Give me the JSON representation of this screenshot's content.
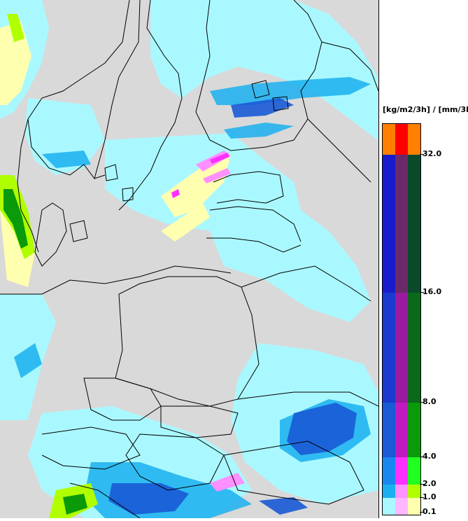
{
  "legend": {
    "unit_label": "[kg/m2/3h] / [mm/3h]",
    "ticks": [
      "32.0",
      "16.0",
      "8.0",
      "4.0",
      "2.0",
      "1.0",
      "0.1"
    ],
    "bands": [
      {
        "from": 32.0,
        "to": null,
        "colors": [
          "#ff7f00",
          "#ff0000",
          "#ff7f00"
        ]
      },
      {
        "from": 16.0,
        "to": 32.0,
        "colors": [
          "#1a1acd",
          "#6a2a6a",
          "#0a4a2a"
        ]
      },
      {
        "from": 8.0,
        "to": 16.0,
        "colors": [
          "#1a3acd",
          "#9a1aa0",
          "#0a6a1a"
        ]
      },
      {
        "from": 4.0,
        "to": 8.0,
        "colors": [
          "#1a5ad6",
          "#c01ac0",
          "#0a9a0a"
        ]
      },
      {
        "from": 2.0,
        "to": 4.0,
        "colors": [
          "#1a86f0",
          "#ff30ff",
          "#20ff20"
        ]
      },
      {
        "from": 1.0,
        "to": 2.0,
        "colors": [
          "#1ab0f0",
          "#ff90ff",
          "#b0ff00"
        ]
      },
      {
        "from": 0.1,
        "to": 1.0,
        "colors": [
          "#aaf8ff",
          "#ffb8ff",
          "#ffffb0"
        ]
      }
    ]
  },
  "map": {
    "background_color": "#d9d9d9",
    "border_color": "#000000",
    "precip_colors": {
      "light_rain": "#aaf8ff",
      "moderate_rain": "#1ab0f0",
      "heavy_rain": "#1a5ad6",
      "light_snow": "#ffffb0",
      "moderate_snow": "#ff90ff",
      "heavy_snow": "#ff30ff",
      "light_mixed": "#b0ff00",
      "heavy_mixed": "#0a9a0a"
    }
  }
}
